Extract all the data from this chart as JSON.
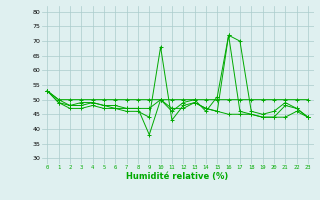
{
  "background_color": "#dff0f0",
  "grid_color": "#aacccc",
  "line_color": "#00aa00",
  "marker": "+",
  "xlabel": "Humidité relative (%)",
  "xlabel_color": "#00aa00",
  "ylabel_yticks": [
    30,
    35,
    40,
    45,
    50,
    55,
    60,
    65,
    70,
    75,
    80
  ],
  "ylim": [
    28,
    82
  ],
  "xlim": [
    -0.5,
    23.5
  ],
  "xticks": [
    0,
    1,
    2,
    3,
    4,
    5,
    6,
    7,
    8,
    9,
    10,
    11,
    12,
    13,
    14,
    15,
    16,
    17,
    18,
    19,
    20,
    21,
    22,
    23
  ],
  "series": [
    [
      53,
      49,
      47,
      47,
      48,
      47,
      47,
      46,
      46,
      44,
      68,
      43,
      48,
      49,
      47,
      46,
      45,
      45,
      45,
      44,
      44,
      48,
      47,
      44
    ],
    [
      53,
      50,
      50,
      50,
      50,
      50,
      50,
      50,
      50,
      50,
      50,
      50,
      50,
      50,
      50,
      50,
      50,
      50,
      50,
      50,
      50,
      50,
      50,
      50
    ],
    [
      53,
      50,
      48,
      48,
      49,
      48,
      48,
      47,
      47,
      47,
      50,
      46,
      49,
      50,
      46,
      51,
      72,
      70,
      46,
      45,
      46,
      49,
      47,
      44
    ],
    [
      53,
      49,
      48,
      49,
      49,
      48,
      47,
      47,
      47,
      38,
      50,
      47,
      47,
      49,
      47,
      46,
      72,
      46,
      45,
      44,
      44,
      44,
      46,
      44
    ]
  ]
}
